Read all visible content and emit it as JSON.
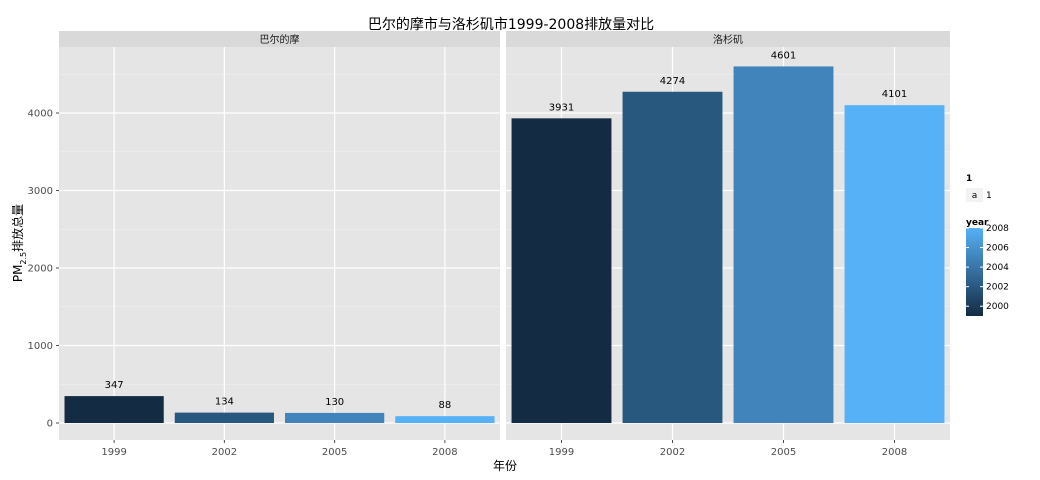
{
  "chart_data": {
    "type": "bar",
    "title": "巴尔的摩市与洛杉矶市1999-2008排放量对比",
    "xlabel": "年份",
    "ylabel_main": "PM",
    "ylabel_sub": "2.5",
    "ylabel_suffix": "排放总量",
    "ylim": [
      0,
      4800
    ],
    "yticks": [
      0,
      1000,
      2000,
      3000,
      4000
    ],
    "categories": [
      "1999",
      "2002",
      "2005",
      "2008"
    ],
    "grid": true,
    "legend_position": "right",
    "panels": [
      {
        "name": "巴尔的摩",
        "values": [
          347,
          134,
          130,
          88
        ]
      },
      {
        "name": "洛杉矶",
        "values": [
          3931,
          4274,
          4601,
          4101
        ]
      }
    ],
    "legend": {
      "shape_title": "1",
      "shape_key": "a",
      "shape_label": "1",
      "color_title": "year",
      "color_ticks": [
        2008,
        2006,
        2004,
        2002,
        2000
      ],
      "color_range": [
        1999,
        2008
      ],
      "low_color": "#132B43",
      "high_color": "#56B1F7"
    }
  }
}
